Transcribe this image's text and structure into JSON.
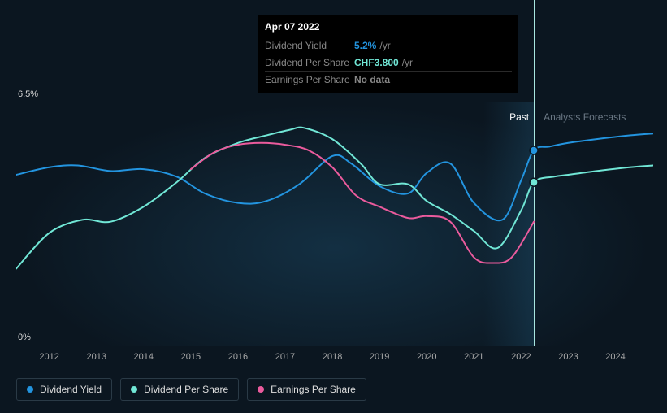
{
  "chart": {
    "type": "line",
    "background_color": "#0b1620",
    "grid_color": "#4a5568",
    "y_axis": {
      "min_label": "0%",
      "max_label": "6.5%",
      "ylim": [
        0,
        6.5
      ]
    },
    "x_axis": {
      "years": [
        "2012",
        "2013",
        "2014",
        "2015",
        "2016",
        "2017",
        "2018",
        "2019",
        "2020",
        "2021",
        "2022",
        "2023",
        "2024"
      ],
      "year_min": 2011.3,
      "year_max": 2024.8
    },
    "labels": {
      "past": "Past",
      "forecast": "Analysts Forecasts"
    },
    "past_boundary_year": 2022.27,
    "cursor_year": 2022.27,
    "past_region_start_year": 2021.2,
    "line_width": 2,
    "series": {
      "dividend_yield": {
        "label": "Dividend Yield",
        "color": "#2394df",
        "marker_at_cursor": true,
        "points": [
          [
            2011.3,
            4.55
          ],
          [
            2012,
            4.75
          ],
          [
            2012.6,
            4.8
          ],
          [
            2013.3,
            4.65
          ],
          [
            2014,
            4.7
          ],
          [
            2014.7,
            4.5
          ],
          [
            2015.3,
            4.05
          ],
          [
            2016,
            3.8
          ],
          [
            2016.6,
            3.85
          ],
          [
            2017.3,
            4.3
          ],
          [
            2018,
            5.05
          ],
          [
            2018.4,
            4.85
          ],
          [
            2019,
            4.25
          ],
          [
            2019.6,
            4.05
          ],
          [
            2020,
            4.6
          ],
          [
            2020.5,
            4.85
          ],
          [
            2021,
            3.8
          ],
          [
            2021.6,
            3.35
          ],
          [
            2022,
            4.4
          ],
          [
            2022.27,
            5.2
          ],
          [
            2022.6,
            5.3
          ],
          [
            2023,
            5.4
          ],
          [
            2023.6,
            5.5
          ],
          [
            2024.3,
            5.6
          ],
          [
            2024.8,
            5.65
          ]
        ]
      },
      "dividend_per_share": {
        "label": "Dividend Per Share",
        "color": "#71e7d6",
        "marker_at_cursor": true,
        "points": [
          [
            2011.3,
            2.05
          ],
          [
            2012,
            3.0
          ],
          [
            2012.7,
            3.35
          ],
          [
            2013.3,
            3.3
          ],
          [
            2014,
            3.7
          ],
          [
            2014.7,
            4.35
          ],
          [
            2015.3,
            5.0
          ],
          [
            2016,
            5.4
          ],
          [
            2016.6,
            5.6
          ],
          [
            2017.1,
            5.75
          ],
          [
            2017.4,
            5.8
          ],
          [
            2018,
            5.5
          ],
          [
            2018.6,
            4.85
          ],
          [
            2019,
            4.3
          ],
          [
            2019.6,
            4.3
          ],
          [
            2020,
            3.85
          ],
          [
            2020.5,
            3.5
          ],
          [
            2021,
            3.05
          ],
          [
            2021.5,
            2.6
          ],
          [
            2022,
            3.6
          ],
          [
            2022.27,
            4.35
          ],
          [
            2022.7,
            4.5
          ],
          [
            2023,
            4.55
          ],
          [
            2023.6,
            4.65
          ],
          [
            2024.3,
            4.75
          ],
          [
            2024.8,
            4.8
          ]
        ]
      },
      "earnings_per_share": {
        "label": "Earnings Per Share",
        "color": "#eb5b9d",
        "marker_at_cursor": false,
        "points": [
          [
            2015,
            4.7
          ],
          [
            2015.5,
            5.15
          ],
          [
            2016,
            5.35
          ],
          [
            2016.5,
            5.4
          ],
          [
            2017,
            5.35
          ],
          [
            2017.5,
            5.2
          ],
          [
            2018,
            4.75
          ],
          [
            2018.5,
            4.0
          ],
          [
            2019,
            3.7
          ],
          [
            2019.6,
            3.4
          ],
          [
            2020,
            3.45
          ],
          [
            2020.5,
            3.3
          ],
          [
            2021,
            2.35
          ],
          [
            2021.4,
            2.2
          ],
          [
            2021.8,
            2.35
          ],
          [
            2022.27,
            3.3
          ]
        ]
      }
    }
  },
  "tooltip": {
    "date": "Apr 07 2022",
    "rows": [
      {
        "key": "Dividend Yield",
        "value": "5.2%",
        "unit": "/yr",
        "value_color": "#2394df"
      },
      {
        "key": "Dividend Per Share",
        "value": "CHF3.800",
        "unit": "/yr",
        "value_color": "#71e7d6"
      },
      {
        "key": "Earnings Per Share",
        "value": "No data",
        "unit": "",
        "value_color": "#888"
      }
    ]
  },
  "legend": [
    {
      "label": "Dividend Yield",
      "color": "#2394df"
    },
    {
      "label": "Dividend Per Share",
      "color": "#71e7d6"
    },
    {
      "label": "Earnings Per Share",
      "color": "#eb5b9d"
    }
  ]
}
